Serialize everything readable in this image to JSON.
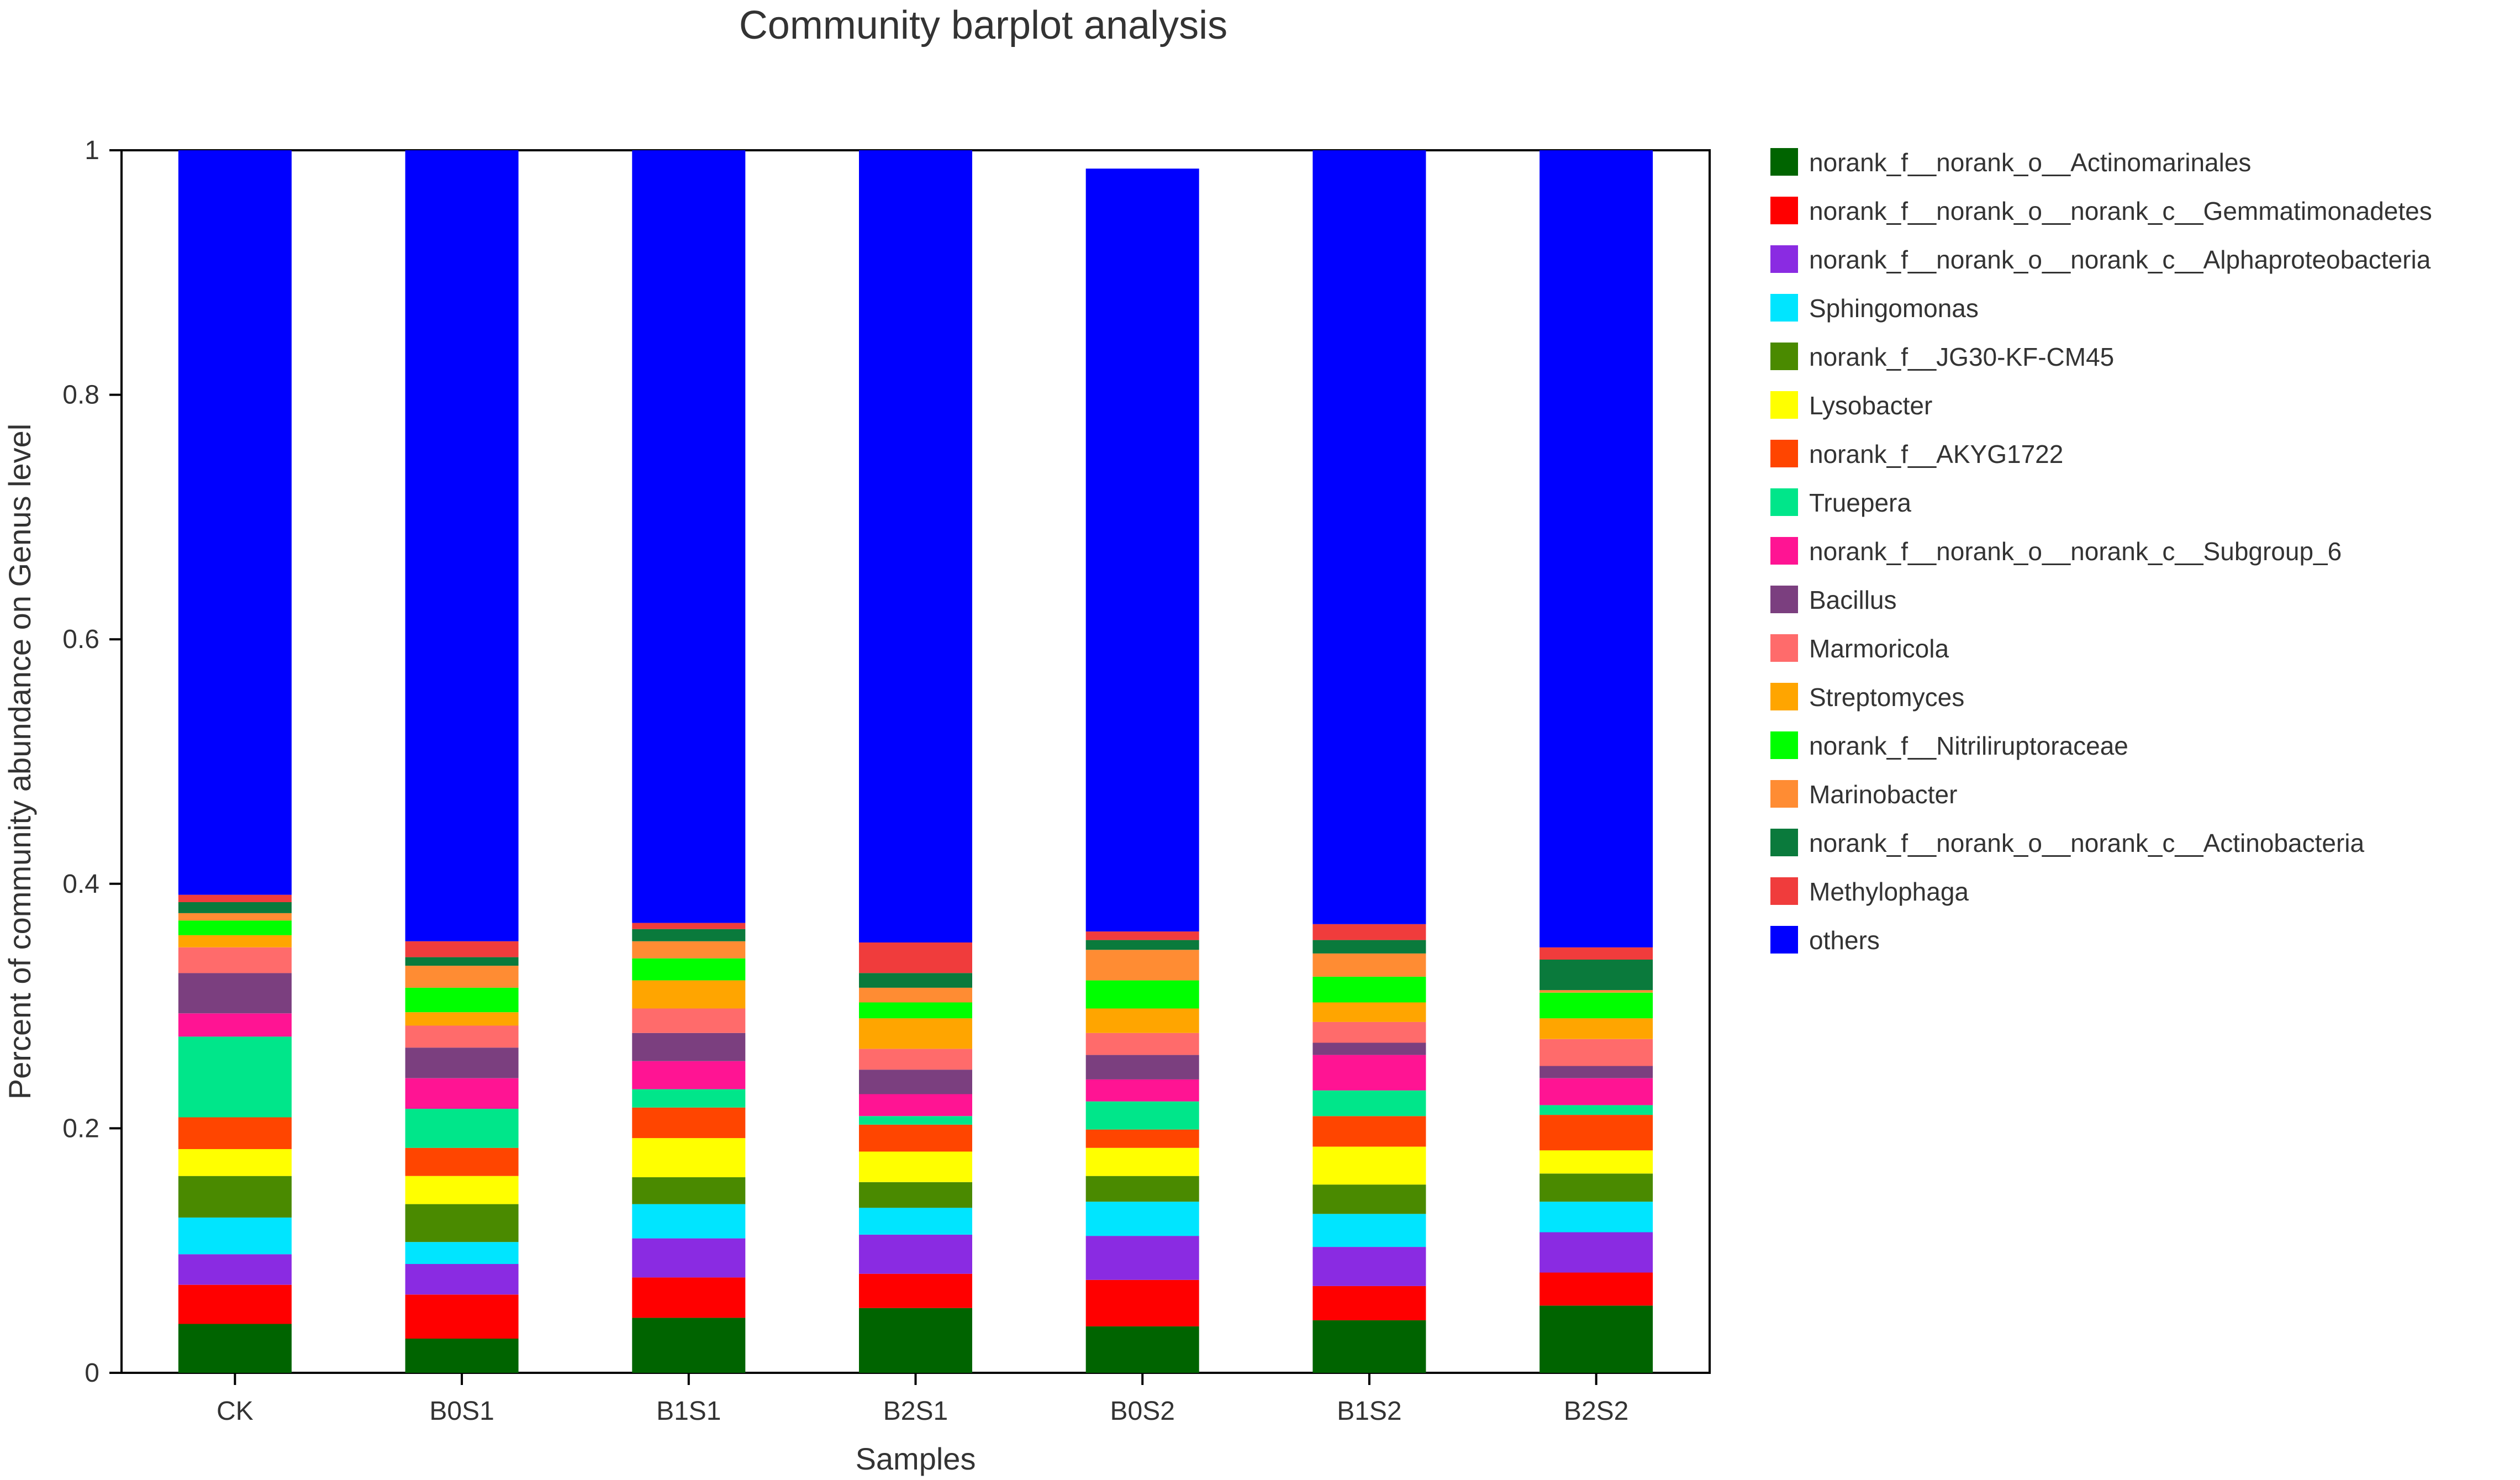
{
  "chart_data": {
    "type": "bar",
    "stacked": true,
    "title": "Community barplot analysis",
    "xlabel": "Samples",
    "ylabel": "Percent of community abundance on Genus level",
    "ylim": [
      0,
      1
    ],
    "yticks": [
      "0",
      "0.2",
      "0.4",
      "0.6",
      "0.8",
      "1"
    ],
    "grid": false,
    "legend_position": "right",
    "categories": [
      "CK",
      "B0S1",
      "B1S1",
      "B2S1",
      "B0S2",
      "B1S2",
      "B2S2"
    ],
    "series": [
      {
        "name": "norank_f__norank_o__Actinomarinales",
        "color": "#006400",
        "values": [
          0.04,
          0.028,
          0.045,
          0.053,
          0.038,
          0.043,
          0.055
        ]
      },
      {
        "name": "norank_f__norank_o__norank_c__Gemmatimonadetes",
        "color": "#ff0000",
        "values": [
          0.032,
          0.036,
          0.033,
          0.028,
          0.038,
          0.028,
          0.027
        ]
      },
      {
        "name": "norank_f__norank_o__norank_c__Alphaproteobacteria",
        "color": "#8a2be2",
        "values": [
          0.025,
          0.025,
          0.032,
          0.032,
          0.036,
          0.032,
          0.033
        ]
      },
      {
        "name": "Sphingomonas",
        "color": "#00e5ff",
        "values": [
          0.03,
          0.018,
          0.028,
          0.022,
          0.028,
          0.027,
          0.025
        ]
      },
      {
        "name": "norank_f__JG30-KF-CM45",
        "color": "#4a8a00",
        "values": [
          0.034,
          0.031,
          0.022,
          0.021,
          0.021,
          0.024,
          0.023
        ]
      },
      {
        "name": "Lysobacter",
        "color": "#ffff00",
        "values": [
          0.022,
          0.023,
          0.032,
          0.025,
          0.023,
          0.031,
          0.019
        ]
      },
      {
        "name": "norank_f__AKYG1722",
        "color": "#ff4500",
        "values": [
          0.026,
          0.023,
          0.025,
          0.022,
          0.015,
          0.025,
          0.029
        ]
      },
      {
        "name": "Truepera",
        "color": "#00e68a",
        "values": [
          0.066,
          0.032,
          0.015,
          0.007,
          0.023,
          0.021,
          0.008
        ]
      },
      {
        "name": "norank_f__norank_o__norank_c__Subgroup_6",
        "color": "#ff1493",
        "values": [
          0.019,
          0.025,
          0.023,
          0.018,
          0.018,
          0.029,
          0.022
        ]
      },
      {
        "name": "Bacillus",
        "color": "#7b3f7f",
        "values": [
          0.033,
          0.025,
          0.023,
          0.02,
          0.02,
          0.01,
          0.01
        ]
      },
      {
        "name": "Marmoricola",
        "color": "#ff6b6b",
        "values": [
          0.021,
          0.018,
          0.02,
          0.017,
          0.018,
          0.017,
          0.022
        ]
      },
      {
        "name": "Streptomyces",
        "color": "#ffa500",
        "values": [
          0.01,
          0.011,
          0.023,
          0.025,
          0.02,
          0.016,
          0.017
        ]
      },
      {
        "name": "norank_f__Nitriliruptoraceae",
        "color": "#00ff00",
        "values": [
          0.012,
          0.02,
          0.018,
          0.013,
          0.023,
          0.021,
          0.021
        ]
      },
      {
        "name": "Marinobacter",
        "color": "#ff8c33",
        "values": [
          0.006,
          0.018,
          0.014,
          0.012,
          0.025,
          0.019,
          0.002
        ]
      },
      {
        "name": "norank_f__norank_o__norank_c__Actinobacteria",
        "color": "#0a7a3c",
        "values": [
          0.009,
          0.007,
          0.01,
          0.012,
          0.008,
          0.011,
          0.025
        ]
      },
      {
        "name": "Methylophaga",
        "color": "#f03c3c",
        "values": [
          0.006,
          0.013,
          0.005,
          0.025,
          0.007,
          0.013,
          0.01
        ]
      },
      {
        "name": "others",
        "color": "#0000ff",
        "values": [
          0.609,
          0.647,
          0.632,
          0.648,
          0.624,
          0.633,
          0.652
        ]
      }
    ]
  }
}
